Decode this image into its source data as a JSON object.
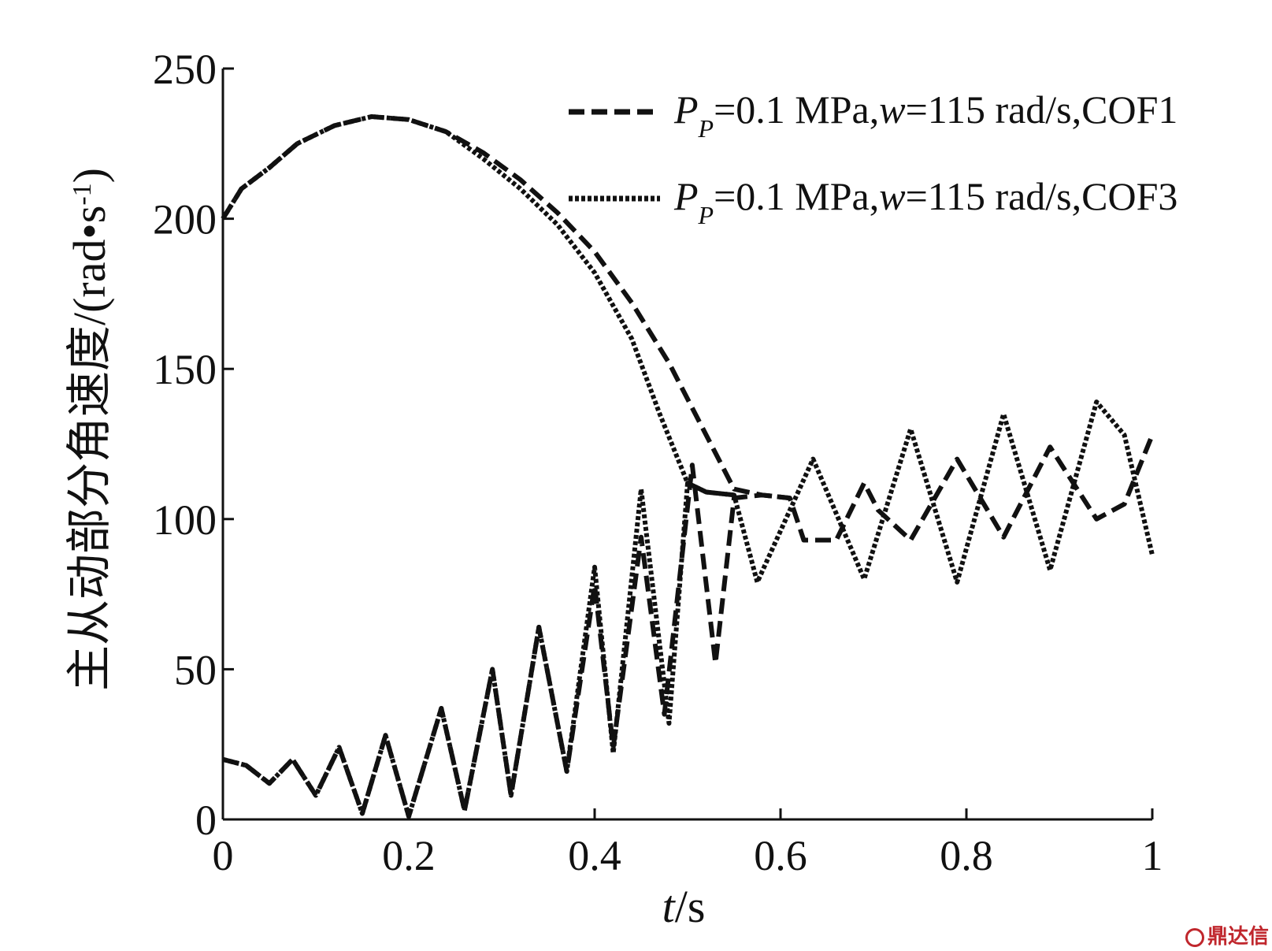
{
  "chart_data": {
    "type": "line",
    "title": "",
    "xlabel": {
      "italic": "t",
      "unit": "/s"
    },
    "ylabel": {
      "text": "主从动部分角速度/(rad",
      "dot": "•",
      "s": "s",
      "sup": "-1",
      "close": ")"
    },
    "xlim": [
      0,
      1
    ],
    "ylim": [
      0,
      250
    ],
    "xticks": [
      0,
      0.2,
      0.4,
      0.6,
      0.8,
      1
    ],
    "xtick_labels": [
      "0",
      "0.2",
      "0.4",
      "0.6",
      "0.8",
      "1"
    ],
    "yticks": [
      0,
      50,
      100,
      150,
      200,
      250
    ],
    "ytick_labels": [
      "0",
      "50",
      "100",
      "150",
      "200",
      "250"
    ],
    "grid": false,
    "legend_position": "top-right",
    "series": [
      {
        "legend": {
          "p": "P",
          "sub": "P",
          "mid": "=0.1 MPa,",
          "w": "w",
          "rest": "=115 rad/s,COF1"
        },
        "style": "dashed",
        "driving": [
          [
            0,
            200
          ],
          [
            0.02,
            210
          ],
          [
            0.05,
            217
          ],
          [
            0.08,
            225
          ],
          [
            0.12,
            231
          ],
          [
            0.16,
            234
          ],
          [
            0.2,
            233
          ],
          [
            0.24,
            229
          ],
          [
            0.28,
            222
          ],
          [
            0.32,
            213
          ],
          [
            0.36,
            202
          ],
          [
            0.4,
            189
          ],
          [
            0.44,
            172
          ],
          [
            0.48,
            152
          ],
          [
            0.52,
            128
          ],
          [
            0.55,
            110
          ],
          [
            0.58,
            108
          ],
          [
            0.61,
            107
          ]
        ],
        "driven": [
          [
            0,
            20
          ],
          [
            0.025,
            18
          ],
          [
            0.05,
            12
          ],
          [
            0.075,
            20
          ],
          [
            0.1,
            8
          ],
          [
            0.125,
            24
          ],
          [
            0.15,
            2
          ],
          [
            0.175,
            28
          ],
          [
            0.2,
            1
          ],
          [
            0.235,
            37
          ],
          [
            0.26,
            3
          ],
          [
            0.29,
            50
          ],
          [
            0.31,
            8
          ],
          [
            0.34,
            64
          ],
          [
            0.37,
            16
          ],
          [
            0.4,
            78
          ],
          [
            0.42,
            24
          ],
          [
            0.45,
            94
          ],
          [
            0.475,
            35
          ],
          [
            0.505,
            118
          ],
          [
            0.53,
            52
          ],
          [
            0.55,
            107
          ],
          [
            0.58,
            108
          ],
          [
            0.61,
            107
          ],
          [
            0.625,
            93
          ],
          [
            0.66,
            93
          ],
          [
            0.69,
            112
          ],
          [
            0.705,
            103
          ],
          [
            0.74,
            93
          ],
          [
            0.79,
            120
          ],
          [
            0.84,
            94
          ],
          [
            0.89,
            124
          ],
          [
            0.94,
            100
          ],
          [
            0.97,
            105
          ],
          [
            1,
            128
          ]
        ]
      },
      {
        "legend": {
          "p": "P",
          "sub": "P",
          "mid": "=0.1 MPa,",
          "w": "w",
          "rest": "=115 rad/s,COF3"
        },
        "style": "dotted",
        "driving": [
          [
            0,
            200
          ],
          [
            0.02,
            210
          ],
          [
            0.05,
            217
          ],
          [
            0.08,
            225
          ],
          [
            0.12,
            231
          ],
          [
            0.16,
            234
          ],
          [
            0.2,
            233
          ],
          [
            0.24,
            229
          ],
          [
            0.28,
            220
          ],
          [
            0.32,
            210
          ],
          [
            0.36,
            198
          ],
          [
            0.4,
            182
          ],
          [
            0.44,
            160
          ],
          [
            0.47,
            135
          ],
          [
            0.5,
            112
          ],
          [
            0.52,
            109
          ],
          [
            0.55,
            108
          ]
        ],
        "driven": [
          [
            0,
            20
          ],
          [
            0.025,
            18
          ],
          [
            0.05,
            12
          ],
          [
            0.075,
            20
          ],
          [
            0.1,
            8
          ],
          [
            0.125,
            24
          ],
          [
            0.15,
            2
          ],
          [
            0.175,
            28
          ],
          [
            0.2,
            1
          ],
          [
            0.235,
            37
          ],
          [
            0.26,
            3
          ],
          [
            0.29,
            50
          ],
          [
            0.31,
            8
          ],
          [
            0.34,
            64
          ],
          [
            0.37,
            16
          ],
          [
            0.4,
            84
          ],
          [
            0.42,
            22
          ],
          [
            0.45,
            110
          ],
          [
            0.48,
            32
          ],
          [
            0.5,
            112
          ],
          [
            0.52,
            109
          ],
          [
            0.55,
            108
          ],
          [
            0.575,
            79
          ],
          [
            0.635,
            120
          ],
          [
            0.69,
            80
          ],
          [
            0.74,
            130
          ],
          [
            0.79,
            79
          ],
          [
            0.84,
            135
          ],
          [
            0.89,
            83
          ],
          [
            0.94,
            139
          ],
          [
            0.97,
            128
          ],
          [
            1,
            88
          ]
        ]
      }
    ]
  },
  "watermark": {
    "text": "鼎达信"
  }
}
